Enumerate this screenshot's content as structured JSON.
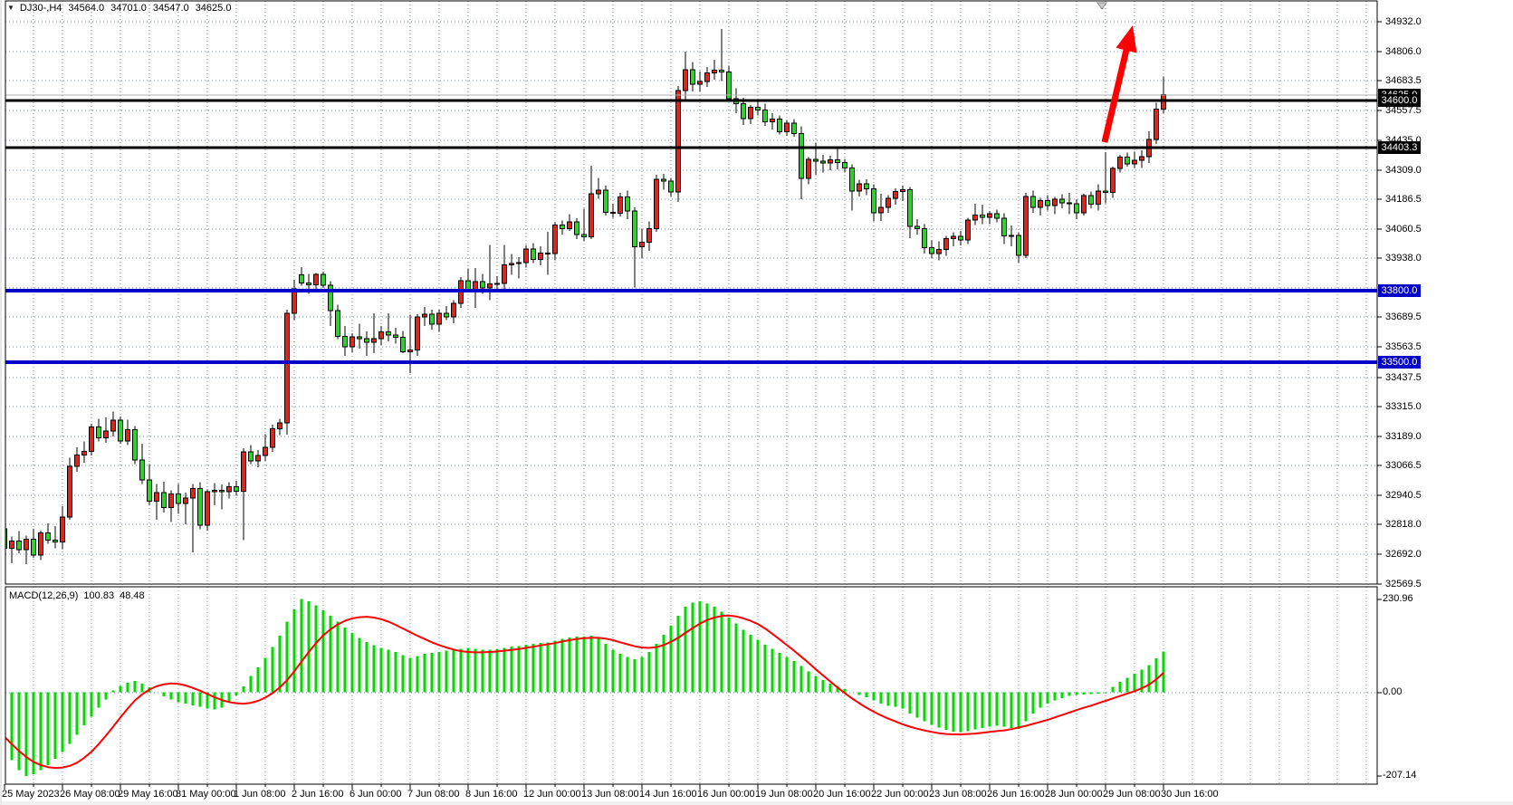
{
  "header": {
    "symbol_period": "DJ30-,H4",
    "open": "34564.0",
    "high": "34701.0",
    "low": "34547.0",
    "close": "34625.0",
    "menu_icon": "▼"
  },
  "indicator": {
    "name": "MACD(12,26,9)",
    "main_value": "100.83",
    "signal_value": "48.48"
  },
  "macd_axis": {
    "max_label": "230.96",
    "zero_label": "0.00",
    "min_label": "-207.14"
  },
  "price_axis": {
    "tick_labels": [
      "34932.0",
      "34806.0",
      "34683.5",
      "34557.5",
      "34435.0",
      "34309.0",
      "34186.5",
      "34060.5",
      "33938.0",
      "33689.5",
      "33563.5",
      "33437.5",
      "33315.0",
      "33189.0",
      "33066.5",
      "32940.5",
      "32818.0",
      "32692.0",
      "32569.5"
    ]
  },
  "badges": [
    {
      "label": "34625.0",
      "value": 34625.0,
      "bg": "#000000",
      "kind": "current-price"
    },
    {
      "label": "34600.0",
      "value": 34600.0,
      "bg": "#000000",
      "kind": "hline"
    },
    {
      "label": "34403.3",
      "value": 34403.3,
      "bg": "#000000",
      "kind": "hline"
    },
    {
      "label": "33800.0",
      "value": 33800.0,
      "bg": "#0000c8",
      "kind": "hline"
    },
    {
      "label": "33500.0",
      "value": 33500.0,
      "bg": "#0000c8",
      "kind": "hline"
    }
  ],
  "colors": {
    "candle_up": "#e0251c",
    "candle_down": "#2bd42b",
    "candle_outline": "#000000",
    "macd_histogram": "#00d800",
    "macd_signal": "#ff0000",
    "hline_black": "#000000",
    "hline_blue": "#0000c8",
    "grid": "#808fa0",
    "current_price_line": "#b0b0b0",
    "arrow": "#ff0000",
    "badge_text": "#ffffff"
  },
  "chart_data": {
    "type": "candlestick",
    "symbol": "DJ30-",
    "timeframe": "H4",
    "ylim": [
      32569.5,
      34932.0
    ],
    "grid": "dashed",
    "price_gridlines": [
      34932.0,
      34806.0,
      34683.5,
      34557.5,
      34435.0,
      34309.0,
      34186.5,
      34060.5,
      33938.0,
      33813.5,
      33689.5,
      33563.5,
      33437.5,
      33315.0,
      33189.0,
      33066.5,
      32940.5,
      32818.0,
      32692.0
    ],
    "hlines": [
      {
        "price": 34600.0,
        "color": "#000000",
        "width": 3
      },
      {
        "price": 34403.3,
        "color": "#000000",
        "width": 3
      },
      {
        "price": 33800.0,
        "color": "#0000c8",
        "width": 4
      },
      {
        "price": 33500.0,
        "color": "#0000c8",
        "width": 4
      }
    ],
    "current_price": 34625.0,
    "time_labels": [
      "25 May 2023",
      "26 May 08:00",
      "29 May 16:00",
      "31 May 00:00",
      "1 Jun 08:00",
      "2 Jun 16:00",
      "6 Jun 00:00",
      "7 Jun 08:00",
      "8 Jun 16:00",
      "12 Jun 00:00",
      "13 Jun 08:00",
      "14 Jun 16:00",
      "16 Jun 00:00",
      "19 Jun 08:00",
      "20 Jun 16:00",
      "22 Jun 00:00",
      "23 Jun 08:00",
      "26 Jun 16:00",
      "28 Jun 00:00",
      "29 Jun 08:00",
      "30 Jun 16:00"
    ],
    "bars_per_label": 8,
    "candles": [
      [
        32800,
        32835,
        32700,
        32718
      ],
      [
        32718,
        32768,
        32655,
        32748
      ],
      [
        32748,
        32790,
        32698,
        32712
      ],
      [
        32712,
        32772,
        32652,
        32756
      ],
      [
        32756,
        32800,
        32678,
        32690
      ],
      [
        32690,
        32792,
        32668,
        32782
      ],
      [
        32782,
        32822,
        32738,
        32752
      ],
      [
        32752,
        32812,
        32718,
        32745
      ],
      [
        32745,
        32895,
        32715,
        32850
      ],
      [
        32850,
        33098,
        32838,
        33062
      ],
      [
        33062,
        33142,
        33040,
        33110
      ],
      [
        33110,
        33168,
        33078,
        33126
      ],
      [
        33126,
        33242,
        33108,
        33228
      ],
      [
        33228,
        33262,
        33168,
        33182
      ],
      [
        33182,
        33268,
        33162,
        33212
      ],
      [
        33212,
        33292,
        33188,
        33256
      ],
      [
        33256,
        33272,
        33158,
        33170
      ],
      [
        33170,
        33258,
        33152,
        33216
      ],
      [
        33216,
        33232,
        33072,
        33090
      ],
      [
        33090,
        33158,
        32988,
        33006
      ],
      [
        33006,
        33072,
        32898,
        32916
      ],
      [
        32916,
        32988,
        32838,
        32952
      ],
      [
        32952,
        32998,
        32868,
        32890
      ],
      [
        32890,
        32962,
        32828,
        32946
      ],
      [
        32946,
        32988,
        32862,
        32906
      ],
      [
        32906,
        32952,
        32818,
        32930
      ],
      [
        32930,
        32988,
        32700,
        32970
      ],
      [
        32970,
        32996,
        32798,
        32816
      ],
      [
        32816,
        32966,
        32792,
        32956
      ],
      [
        32956,
        32992,
        32898,
        32962
      ],
      [
        32962,
        32986,
        32882,
        32956
      ],
      [
        32956,
        32996,
        32928,
        32976
      ],
      [
        32976,
        33002,
        32938,
        32958
      ],
      [
        32958,
        33138,
        32752,
        33123
      ],
      [
        33123,
        33152,
        33072,
        33086
      ],
      [
        33086,
        33132,
        33058,
        33108
      ],
      [
        33108,
        33198,
        33086,
        33143
      ],
      [
        33143,
        33238,
        33124,
        33220
      ],
      [
        33220,
        33262,
        33194,
        33245
      ],
      [
        33245,
        33722,
        33196,
        33706
      ],
      [
        33706,
        33846,
        33678,
        33808
      ],
      [
        33868,
        33900,
        33822,
        33834
      ],
      [
        33834,
        33872,
        33788,
        33826
      ],
      [
        33826,
        33876,
        33798,
        33869
      ],
      [
        33869,
        33882,
        33812,
        33825
      ],
      [
        33825,
        33842,
        33653,
        33717
      ],
      [
        33717,
        33742,
        33598,
        33609
      ],
      [
        33609,
        33652,
        33528,
        33566
      ],
      [
        33566,
        33622,
        33542,
        33607
      ],
      [
        33607,
        33662,
        33558,
        33600
      ],
      [
        33600,
        33630,
        33528,
        33585
      ],
      [
        33585,
        33706,
        33538,
        33600
      ],
      [
        33600,
        33652,
        33572,
        33628
      ],
      [
        33628,
        33706,
        33588,
        33615
      ],
      [
        33615,
        33645,
        33578,
        33605
      ],
      [
        33605,
        33632,
        33538,
        33545
      ],
      [
        33545,
        33700,
        33455,
        33552
      ],
      [
        33552,
        33702,
        33528,
        33690
      ],
      [
        33690,
        33732,
        33652,
        33703
      ],
      [
        33703,
        33722,
        33638,
        33660
      ],
      [
        33660,
        33722,
        33628,
        33706
      ],
      [
        33706,
        33736,
        33678,
        33691
      ],
      [
        33691,
        33762,
        33664,
        33748
      ],
      [
        33748,
        33858,
        33728,
        33844
      ],
      [
        33844,
        33894,
        33793,
        33806
      ],
      [
        33806,
        33896,
        33728,
        33840
      ],
      [
        33840,
        33872,
        33788,
        33812
      ],
      [
        33812,
        33993,
        33762,
        33830
      ],
      [
        33830,
        33862,
        33796,
        33831
      ],
      [
        33831,
        33993,
        33808,
        33910
      ],
      [
        33910,
        33956,
        33868,
        33916
      ],
      [
        33916,
        33942,
        33852,
        33920
      ],
      [
        33920,
        33992,
        33898,
        33976
      ],
      [
        33976,
        34002,
        33918,
        33933
      ],
      [
        33933,
        33988,
        33908,
        33960
      ],
      [
        33960,
        34048,
        33868,
        33958
      ],
      [
        33958,
        34088,
        33928,
        34078
      ],
      [
        34078,
        34096,
        34038,
        34062
      ],
      [
        34062,
        34122,
        34052,
        34090
      ],
      [
        34090,
        34106,
        34018,
        34038
      ],
      [
        34038,
        34146,
        34008,
        34028
      ],
      [
        34028,
        34326,
        34018,
        34208
      ],
      [
        34208,
        34276,
        34188,
        34224
      ],
      [
        34224,
        34242,
        34118,
        34131
      ],
      [
        34131,
        34166,
        34108,
        34127
      ],
      [
        34127,
        34212,
        34113,
        34195
      ],
      [
        34195,
        34222,
        34102,
        34136
      ],
      [
        34136,
        34152,
        33815,
        33985
      ],
      [
        33985,
        34062,
        33938,
        34005
      ],
      [
        34005,
        34092,
        33968,
        34062
      ],
      [
        34062,
        34288,
        34048,
        34270
      ],
      [
        34270,
        34292,
        34226,
        34262
      ],
      [
        34262,
        34276,
        34198,
        34217
      ],
      [
        34217,
        34662,
        34175,
        34643
      ],
      [
        34643,
        34806,
        34598,
        34730
      ],
      [
        34730,
        34762,
        34638,
        34669
      ],
      [
        34669,
        34722,
        34638,
        34680
      ],
      [
        34680,
        34742,
        34658,
        34716
      ],
      [
        34716,
        34772,
        34688,
        34728
      ],
      [
        34728,
        34901,
        34682,
        34721
      ],
      [
        34721,
        34748,
        34596,
        34608
      ],
      [
        34608,
        34652,
        34548,
        34588
      ],
      [
        34588,
        34612,
        34498,
        34525
      ],
      [
        34525,
        34582,
        34502,
        34573
      ],
      [
        34573,
        34602,
        34538,
        34560
      ],
      [
        34560,
        34588,
        34494,
        34512
      ],
      [
        34512,
        34548,
        34478,
        34523
      ],
      [
        34523,
        34538,
        34458,
        34470
      ],
      [
        34470,
        34518,
        34452,
        34505
      ],
      [
        34505,
        34522,
        34448,
        34462
      ],
      [
        34462,
        34492,
        34186,
        34274
      ],
      [
        34274,
        34362,
        34248,
        34353
      ],
      [
        34353,
        34422,
        34288,
        34345
      ],
      [
        34345,
        34372,
        34298,
        34338
      ],
      [
        34338,
        34368,
        34308,
        34352
      ],
      [
        34352,
        34402,
        34312,
        34340
      ],
      [
        34340,
        34356,
        34298,
        34318
      ],
      [
        34318,
        34332,
        34138,
        34220
      ],
      [
        34220,
        34268,
        34198,
        34250
      ],
      [
        34250,
        34270,
        34202,
        34230
      ],
      [
        34230,
        34248,
        34092,
        34128
      ],
      [
        34128,
        34208,
        34094,
        34151
      ],
      [
        34151,
        34202,
        34128,
        34190
      ],
      [
        34190,
        34232,
        34162,
        34218
      ],
      [
        34218,
        34242,
        34178,
        34225
      ],
      [
        34225,
        34238,
        34022,
        34072
      ],
      [
        34072,
        34102,
        34038,
        34062
      ],
      [
        34062,
        34082,
        33958,
        33983
      ],
      [
        33983,
        34012,
        33938,
        33958
      ],
      [
        33958,
        34008,
        33928,
        33975
      ],
      [
        33975,
        34032,
        33948,
        34021
      ],
      [
        34021,
        34046,
        33988,
        34030
      ],
      [
        34030,
        34052,
        33992,
        34015
      ],
      [
        34015,
        34108,
        33998,
        34099
      ],
      [
        34099,
        34166,
        34078,
        34120
      ],
      [
        34120,
        34162,
        34082,
        34110
      ],
      [
        34110,
        34136,
        34082,
        34124
      ],
      [
        34124,
        34142,
        34088,
        34106
      ],
      [
        34106,
        34126,
        33998,
        34032
      ],
      [
        34032,
        34076,
        33988,
        34033
      ],
      [
        34033,
        34046,
        33918,
        33949
      ],
      [
        33949,
        34212,
        33938,
        34197
      ],
      [
        34197,
        34222,
        34128,
        34151
      ],
      [
        34151,
        34192,
        34118,
        34180
      ],
      [
        34180,
        34202,
        34138,
        34160
      ],
      [
        34160,
        34196,
        34122,
        34185
      ],
      [
        34185,
        34206,
        34148,
        34170
      ],
      [
        34170,
        34212,
        34122,
        34167
      ],
      [
        34167,
        34186,
        34102,
        34129
      ],
      [
        34129,
        34208,
        34118,
        34201
      ],
      [
        34201,
        34218,
        34148,
        34165
      ],
      [
        34165,
        34248,
        34138,
        34220
      ],
      [
        34220,
        34384,
        34168,
        34215
      ],
      [
        34215,
        34322,
        34192,
        34315
      ],
      [
        34315,
        34372,
        34298,
        34363
      ],
      [
        34363,
        34382,
        34322,
        34335
      ],
      [
        34335,
        34386,
        34318,
        34350
      ],
      [
        34350,
        34392,
        34318,
        34365
      ],
      [
        34365,
        34471,
        34338,
        34437
      ],
      [
        34437,
        34592,
        34418,
        34564
      ],
      [
        34564,
        34701,
        34547,
        34625
      ]
    ],
    "macd": {
      "params": [
        12,
        26,
        9
      ],
      "ylim": [
        -207.14,
        230.96
      ],
      "histogram": [
        -140,
        -168,
        -192,
        -207.14,
        -202,
        -193,
        -180,
        -165,
        -148,
        -128,
        -105,
        -82,
        -60,
        -38,
        -18,
        5,
        16,
        24,
        28,
        22,
        12,
        0,
        -10,
        -18,
        -24,
        -28,
        -32,
        -36,
        -40,
        -42,
        -38,
        -25,
        -8,
        15,
        40,
        62,
        85,
        112,
        140,
        175,
        205,
        230.96,
        225,
        215,
        203,
        190,
        175,
        160,
        147,
        135,
        125,
        117,
        110,
        105,
        100,
        92,
        85,
        90,
        95,
        98,
        100,
        103,
        105,
        108,
        110,
        108,
        106,
        105,
        107,
        110,
        113,
        115,
        118,
        120,
        122,
        124,
        128,
        132,
        136,
        138,
        138,
        140,
        135,
        120,
        105,
        95,
        88,
        82,
        88,
        100,
        120,
        142,
        165,
        190,
        212,
        222,
        225,
        220,
        212,
        200,
        185,
        170,
        155,
        142,
        130,
        118,
        108,
        98,
        88,
        78,
        65,
        52,
        40,
        30,
        22,
        15,
        8,
        0,
        -6,
        -12,
        -20,
        -28,
        -33,
        -36,
        -40,
        -52,
        -62,
        -72,
        -80,
        -87,
        -93,
        -97,
        -98,
        -96,
        -92,
        -88,
        -85,
        -83,
        -85,
        -88,
        -90,
        -72,
        -52,
        -38,
        -28,
        -20,
        -14,
        -9,
        -6,
        -5,
        -4,
        -3,
        -2,
        14,
        26,
        36,
        46,
        56,
        68,
        84,
        100.83
      ],
      "signal": [
        -110,
        -128,
        -145,
        -160,
        -172,
        -180,
        -185,
        -187,
        -186,
        -182,
        -174,
        -162,
        -147,
        -128,
        -107,
        -85,
        -62,
        -40,
        -20,
        -5,
        7,
        15,
        20,
        22,
        21,
        17,
        11,
        4,
        -4,
        -12,
        -19,
        -24,
        -27,
        -28,
        -26,
        -21,
        -13,
        -2,
        12,
        30,
        52,
        76,
        100,
        122,
        141,
        156,
        168,
        177,
        183,
        186,
        187,
        185,
        181,
        175,
        167,
        158,
        149,
        140,
        132,
        124,
        117,
        111,
        106,
        102,
        100,
        99,
        99,
        100,
        101,
        103,
        105,
        107,
        110,
        113,
        116,
        119,
        122,
        126,
        129,
        132,
        134,
        135,
        135,
        133,
        129,
        124,
        119,
        114,
        111,
        110,
        112,
        117,
        125,
        135,
        147,
        159,
        170,
        179,
        185,
        189,
        190,
        188,
        183,
        177,
        169,
        158,
        145,
        131,
        117,
        103,
        88,
        73,
        57,
        42,
        27,
        12,
        -2,
        -15,
        -27,
        -38,
        -48,
        -57,
        -65,
        -72,
        -79,
        -85,
        -90,
        -94,
        -98,
        -101,
        -103,
        -104,
        -104,
        -103,
        -102,
        -100,
        -98,
        -96,
        -94,
        -91,
        -87,
        -83,
        -78,
        -73,
        -68,
        -62,
        -56,
        -50,
        -44,
        -38,
        -33,
        -27,
        -21,
        -15,
        -9,
        -3,
        3,
        10,
        19,
        32,
        48.48
      ]
    },
    "annotations": {
      "arrow": {
        "shape": "up-arrow",
        "color": "#ff0000",
        "tail_price": 34400,
        "head_price": 34890
      }
    }
  }
}
